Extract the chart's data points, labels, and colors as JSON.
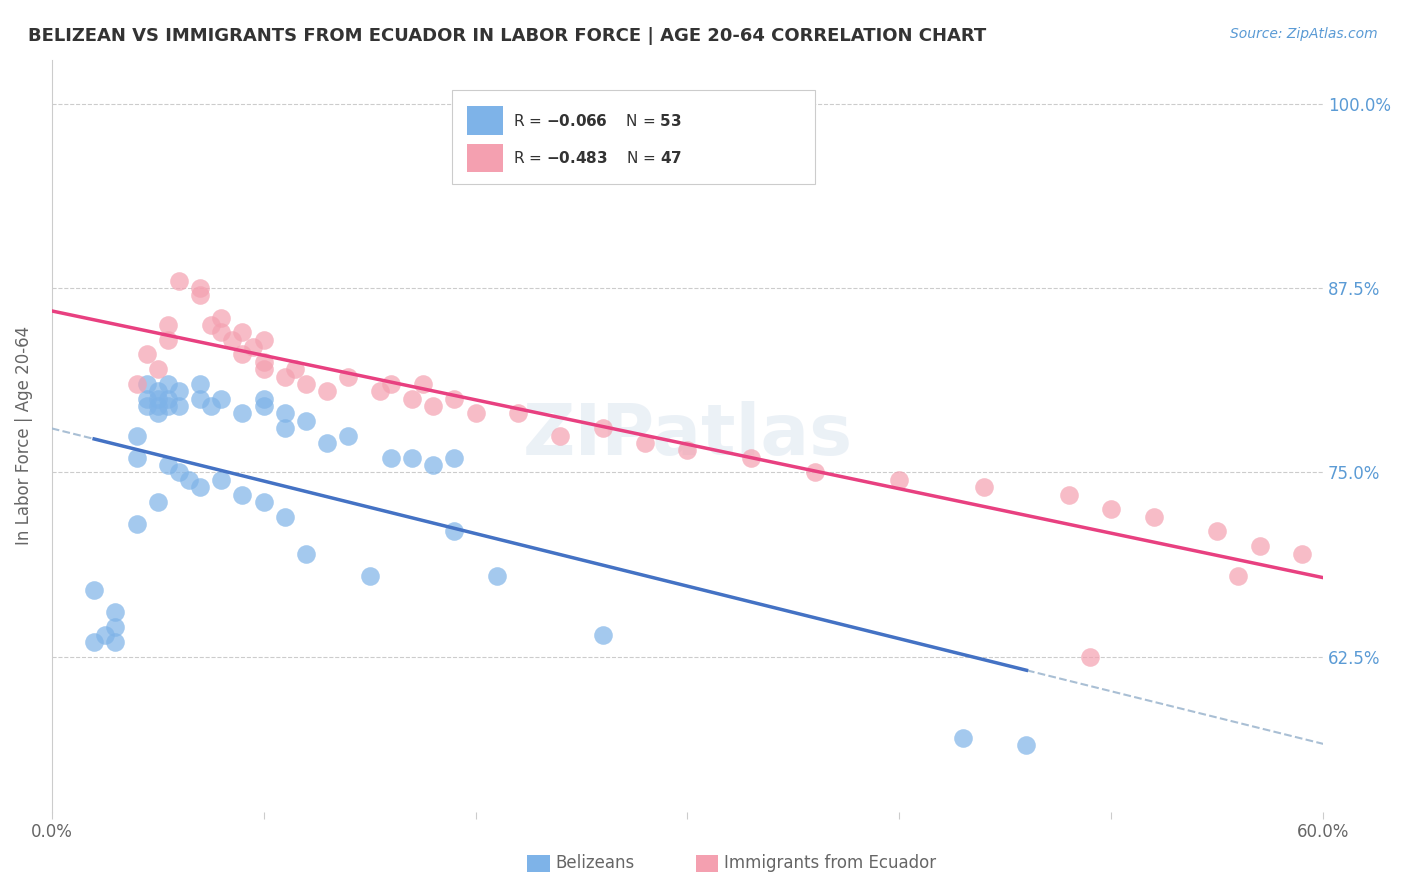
{
  "title": "BELIZEAN VS IMMIGRANTS FROM ECUADOR IN LABOR FORCE | AGE 20-64 CORRELATION CHART",
  "source_text": "Source: ZipAtlas.com",
  "ylabel": "In Labor Force | Age 20-64",
  "xlabel": "",
  "legend_label_1": "Belizeans",
  "legend_label_2": "Immigrants from Ecuador",
  "r1": -0.066,
  "n1": 53,
  "r2": -0.483,
  "n2": 47,
  "xlim": [
    0.0,
    0.6
  ],
  "ylim": [
    0.52,
    1.03
  ],
  "yticks": [
    0.625,
    0.75,
    0.875,
    1.0
  ],
  "ytick_labels": [
    "62.5%",
    "75.0%",
    "87.5%",
    "100.0%"
  ],
  "xticks": [
    0.0,
    0.1,
    0.2,
    0.3,
    0.4,
    0.5,
    0.6
  ],
  "xtick_labels": [
    "0.0%",
    "",
    "",
    "",
    "",
    "",
    "60.0%"
  ],
  "color_blue": "#7EB3E8",
  "color_pink": "#F4A0B0",
  "line_color_blue": "#4472C4",
  "line_color_pink": "#E84080",
  "line_color_dashed": "#A0B8D0",
  "watermark": "ZIPatlas",
  "blue_scatter_x": [
    0.02,
    0.03,
    0.03,
    0.04,
    0.04,
    0.045,
    0.045,
    0.045,
    0.05,
    0.05,
    0.05,
    0.05,
    0.055,
    0.055,
    0.055,
    0.06,
    0.06,
    0.07,
    0.07,
    0.075,
    0.08,
    0.09,
    0.1,
    0.1,
    0.11,
    0.11,
    0.12,
    0.13,
    0.14,
    0.16,
    0.17,
    0.18,
    0.19,
    0.02,
    0.025,
    0.03,
    0.04,
    0.05,
    0.055,
    0.06,
    0.065,
    0.07,
    0.08,
    0.09,
    0.1,
    0.11,
    0.12,
    0.15,
    0.19,
    0.21,
    0.26,
    0.43,
    0.46
  ],
  "blue_scatter_y": [
    0.635,
    0.635,
    0.645,
    0.76,
    0.775,
    0.795,
    0.8,
    0.81,
    0.79,
    0.795,
    0.8,
    0.805,
    0.795,
    0.8,
    0.81,
    0.795,
    0.805,
    0.8,
    0.81,
    0.795,
    0.8,
    0.79,
    0.795,
    0.8,
    0.78,
    0.79,
    0.785,
    0.77,
    0.775,
    0.76,
    0.76,
    0.755,
    0.76,
    0.67,
    0.64,
    0.655,
    0.715,
    0.73,
    0.755,
    0.75,
    0.745,
    0.74,
    0.745,
    0.735,
    0.73,
    0.72,
    0.695,
    0.68,
    0.71,
    0.68,
    0.64,
    0.57,
    0.565
  ],
  "pink_scatter_x": [
    0.04,
    0.045,
    0.05,
    0.055,
    0.055,
    0.06,
    0.07,
    0.07,
    0.075,
    0.08,
    0.08,
    0.085,
    0.09,
    0.09,
    0.095,
    0.1,
    0.1,
    0.1,
    0.11,
    0.115,
    0.12,
    0.13,
    0.14,
    0.155,
    0.16,
    0.17,
    0.175,
    0.18,
    0.19,
    0.2,
    0.22,
    0.24,
    0.26,
    0.28,
    0.3,
    0.33,
    0.36,
    0.4,
    0.44,
    0.48,
    0.5,
    0.52,
    0.55,
    0.57,
    0.59,
    0.49,
    0.56
  ],
  "pink_scatter_y": [
    0.81,
    0.83,
    0.82,
    0.84,
    0.85,
    0.88,
    0.875,
    0.87,
    0.85,
    0.845,
    0.855,
    0.84,
    0.83,
    0.845,
    0.835,
    0.825,
    0.82,
    0.84,
    0.815,
    0.82,
    0.81,
    0.805,
    0.815,
    0.805,
    0.81,
    0.8,
    0.81,
    0.795,
    0.8,
    0.79,
    0.79,
    0.775,
    0.78,
    0.77,
    0.765,
    0.76,
    0.75,
    0.745,
    0.74,
    0.735,
    0.725,
    0.72,
    0.71,
    0.7,
    0.695,
    0.625,
    0.68
  ],
  "bg_color": "#FFFFFF",
  "title_color": "#333333",
  "axis_label_color": "#666666",
  "right_axis_color": "#5B9BD5",
  "grid_color": "#CCCCCC"
}
